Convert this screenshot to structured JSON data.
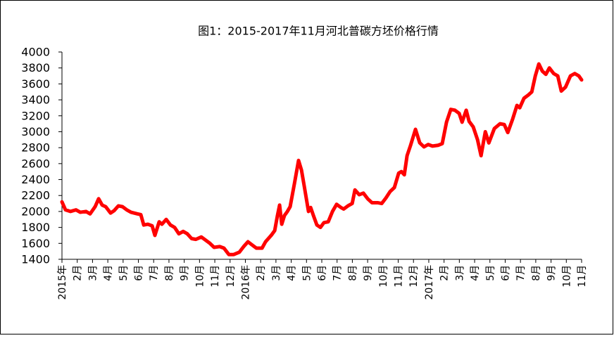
{
  "chart_data": {
    "type": "line",
    "title": "图1：2015-2017年11月河北普碳方坯价格行情",
    "xlim": [
      0,
      34
    ],
    "xticks": [
      {
        "value": 0,
        "label": "2015年"
      },
      {
        "value": 1,
        "label": "2月"
      },
      {
        "value": 2,
        "label": "3月"
      },
      {
        "value": 3,
        "label": "4月"
      },
      {
        "value": 4,
        "label": "5月"
      },
      {
        "value": 5,
        "label": "6月"
      },
      {
        "value": 6,
        "label": "7月"
      },
      {
        "value": 7,
        "label": "8月"
      },
      {
        "value": 8,
        "label": "9月"
      },
      {
        "value": 9,
        "label": "10月"
      },
      {
        "value": 10,
        "label": "11月"
      },
      {
        "value": 11,
        "label": "12月"
      },
      {
        "value": 12,
        "label": "2016年"
      },
      {
        "value": 13,
        "label": "2月"
      },
      {
        "value": 14,
        "label": "3月"
      },
      {
        "value": 15,
        "label": "4月"
      },
      {
        "value": 16,
        "label": "5月"
      },
      {
        "value": 17,
        "label": "6月"
      },
      {
        "value": 18,
        "label": "7月"
      },
      {
        "value": 19,
        "label": "8月"
      },
      {
        "value": 20,
        "label": "9月"
      },
      {
        "value": 21,
        "label": "10月"
      },
      {
        "value": 22,
        "label": "11月"
      },
      {
        "value": 23,
        "label": "12月"
      },
      {
        "value": 24,
        "label": "2017年"
      },
      {
        "value": 25,
        "label": "2月"
      },
      {
        "value": 26,
        "label": "3月"
      },
      {
        "value": 27,
        "label": "4月"
      },
      {
        "value": 28,
        "label": "5月"
      },
      {
        "value": 29,
        "label": "6月"
      },
      {
        "value": 30,
        "label": "7月"
      },
      {
        "value": 31,
        "label": "8月"
      },
      {
        "value": 32,
        "label": "9月"
      },
      {
        "value": 33,
        "label": "10月"
      },
      {
        "value": 34,
        "label": "11月"
      }
    ],
    "ylim": [
      1400,
      4000
    ],
    "yticks": [
      1400,
      1600,
      1800,
      2000,
      2200,
      2400,
      2600,
      2800,
      3000,
      3200,
      3400,
      3600,
      3800,
      4000
    ],
    "x": [
      0,
      0.23,
      0.55,
      0.92,
      1.2,
      1.57,
      1.84,
      2.17,
      2.4,
      2.63,
      2.86,
      3.18,
      3.41,
      3.69,
      3.96,
      4.24,
      4.52,
      4.93,
      5.16,
      5.35,
      5.62,
      5.9,
      6.08,
      6.36,
      6.54,
      6.82,
      7.1,
      7.37,
      7.65,
      7.93,
      8.2,
      8.48,
      8.76,
      9.12,
      9.4,
      9.68,
      9.95,
      10.32,
      10.6,
      10.92,
      11.24,
      11.61,
      11.89,
      12.17,
      12.44,
      12.72,
      13.09,
      13.32,
      13.69,
      13.92,
      14.1,
      14.24,
      14.38,
      14.56,
      14.75,
      14.93,
      15.21,
      15.48,
      15.67,
      15.85,
      16.13,
      16.27,
      16.45,
      16.68,
      16.91,
      17.14,
      17.42,
      17.7,
      17.97,
      18.25,
      18.43,
      18.71,
      18.99,
      19.17,
      19.45,
      19.72,
      20,
      20.28,
      20.65,
      20.92,
      21.2,
      21.47,
      21.75,
      22.03,
      22.21,
      22.4,
      22.58,
      22.81,
      23.13,
      23.41,
      23.69,
      23.96,
      24.24,
      24.61,
      24.88,
      25.16,
      25.44,
      25.71,
      25.99,
      26.18,
      26.45,
      26.64,
      26.91,
      27.19,
      27.42,
      27.7,
      27.93,
      28.29,
      28.66,
      28.94,
      29.17,
      29.49,
      29.77,
      29.95,
      30.23,
      30.51,
      30.74,
      30.97,
      31.2,
      31.43,
      31.66,
      31.89,
      32.17,
      32.44,
      32.67,
      32.95,
      33.27,
      33.55,
      33.82,
      34
    ],
    "series": [
      {
        "name": "河北普碳方坯价格",
        "color": "#ff0000",
        "values": [
          2120,
          2020,
          2000,
          2020,
          1990,
          2000,
          1970,
          2060,
          2160,
          2080,
          2060,
          1980,
          2010,
          2070,
          2060,
          2020,
          1990,
          1970,
          1960,
          1830,
          1840,
          1820,
          1700,
          1870,
          1840,
          1900,
          1830,
          1800,
          1720,
          1750,
          1720,
          1660,
          1650,
          1680,
          1640,
          1600,
          1550,
          1560,
          1540,
          1460,
          1460,
          1490,
          1560,
          1620,
          1580,
          1540,
          1540,
          1620,
          1700,
          1760,
          1950,
          2080,
          1840,
          1950,
          2000,
          2060,
          2350,
          2640,
          2520,
          2320,
          2000,
          2050,
          1950,
          1830,
          1800,
          1860,
          1870,
          2000,
          2090,
          2050,
          2030,
          2070,
          2100,
          2270,
          2210,
          2230,
          2160,
          2110,
          2110,
          2100,
          2170,
          2250,
          2300,
          2480,
          2500,
          2460,
          2700,
          2830,
          3030,
          2860,
          2810,
          2840,
          2820,
          2830,
          2850,
          3120,
          3280,
          3270,
          3230,
          3120,
          3270,
          3130,
          3060,
          2900,
          2700,
          3000,
          2860,
          3040,
          3100,
          3090,
          2990,
          3160,
          3330,
          3300,
          3420,
          3460,
          3500,
          3700,
          3850,
          3760,
          3720,
          3800,
          3730,
          3700,
          3510,
          3560,
          3700,
          3730,
          3700,
          3650
        ]
      }
    ]
  }
}
